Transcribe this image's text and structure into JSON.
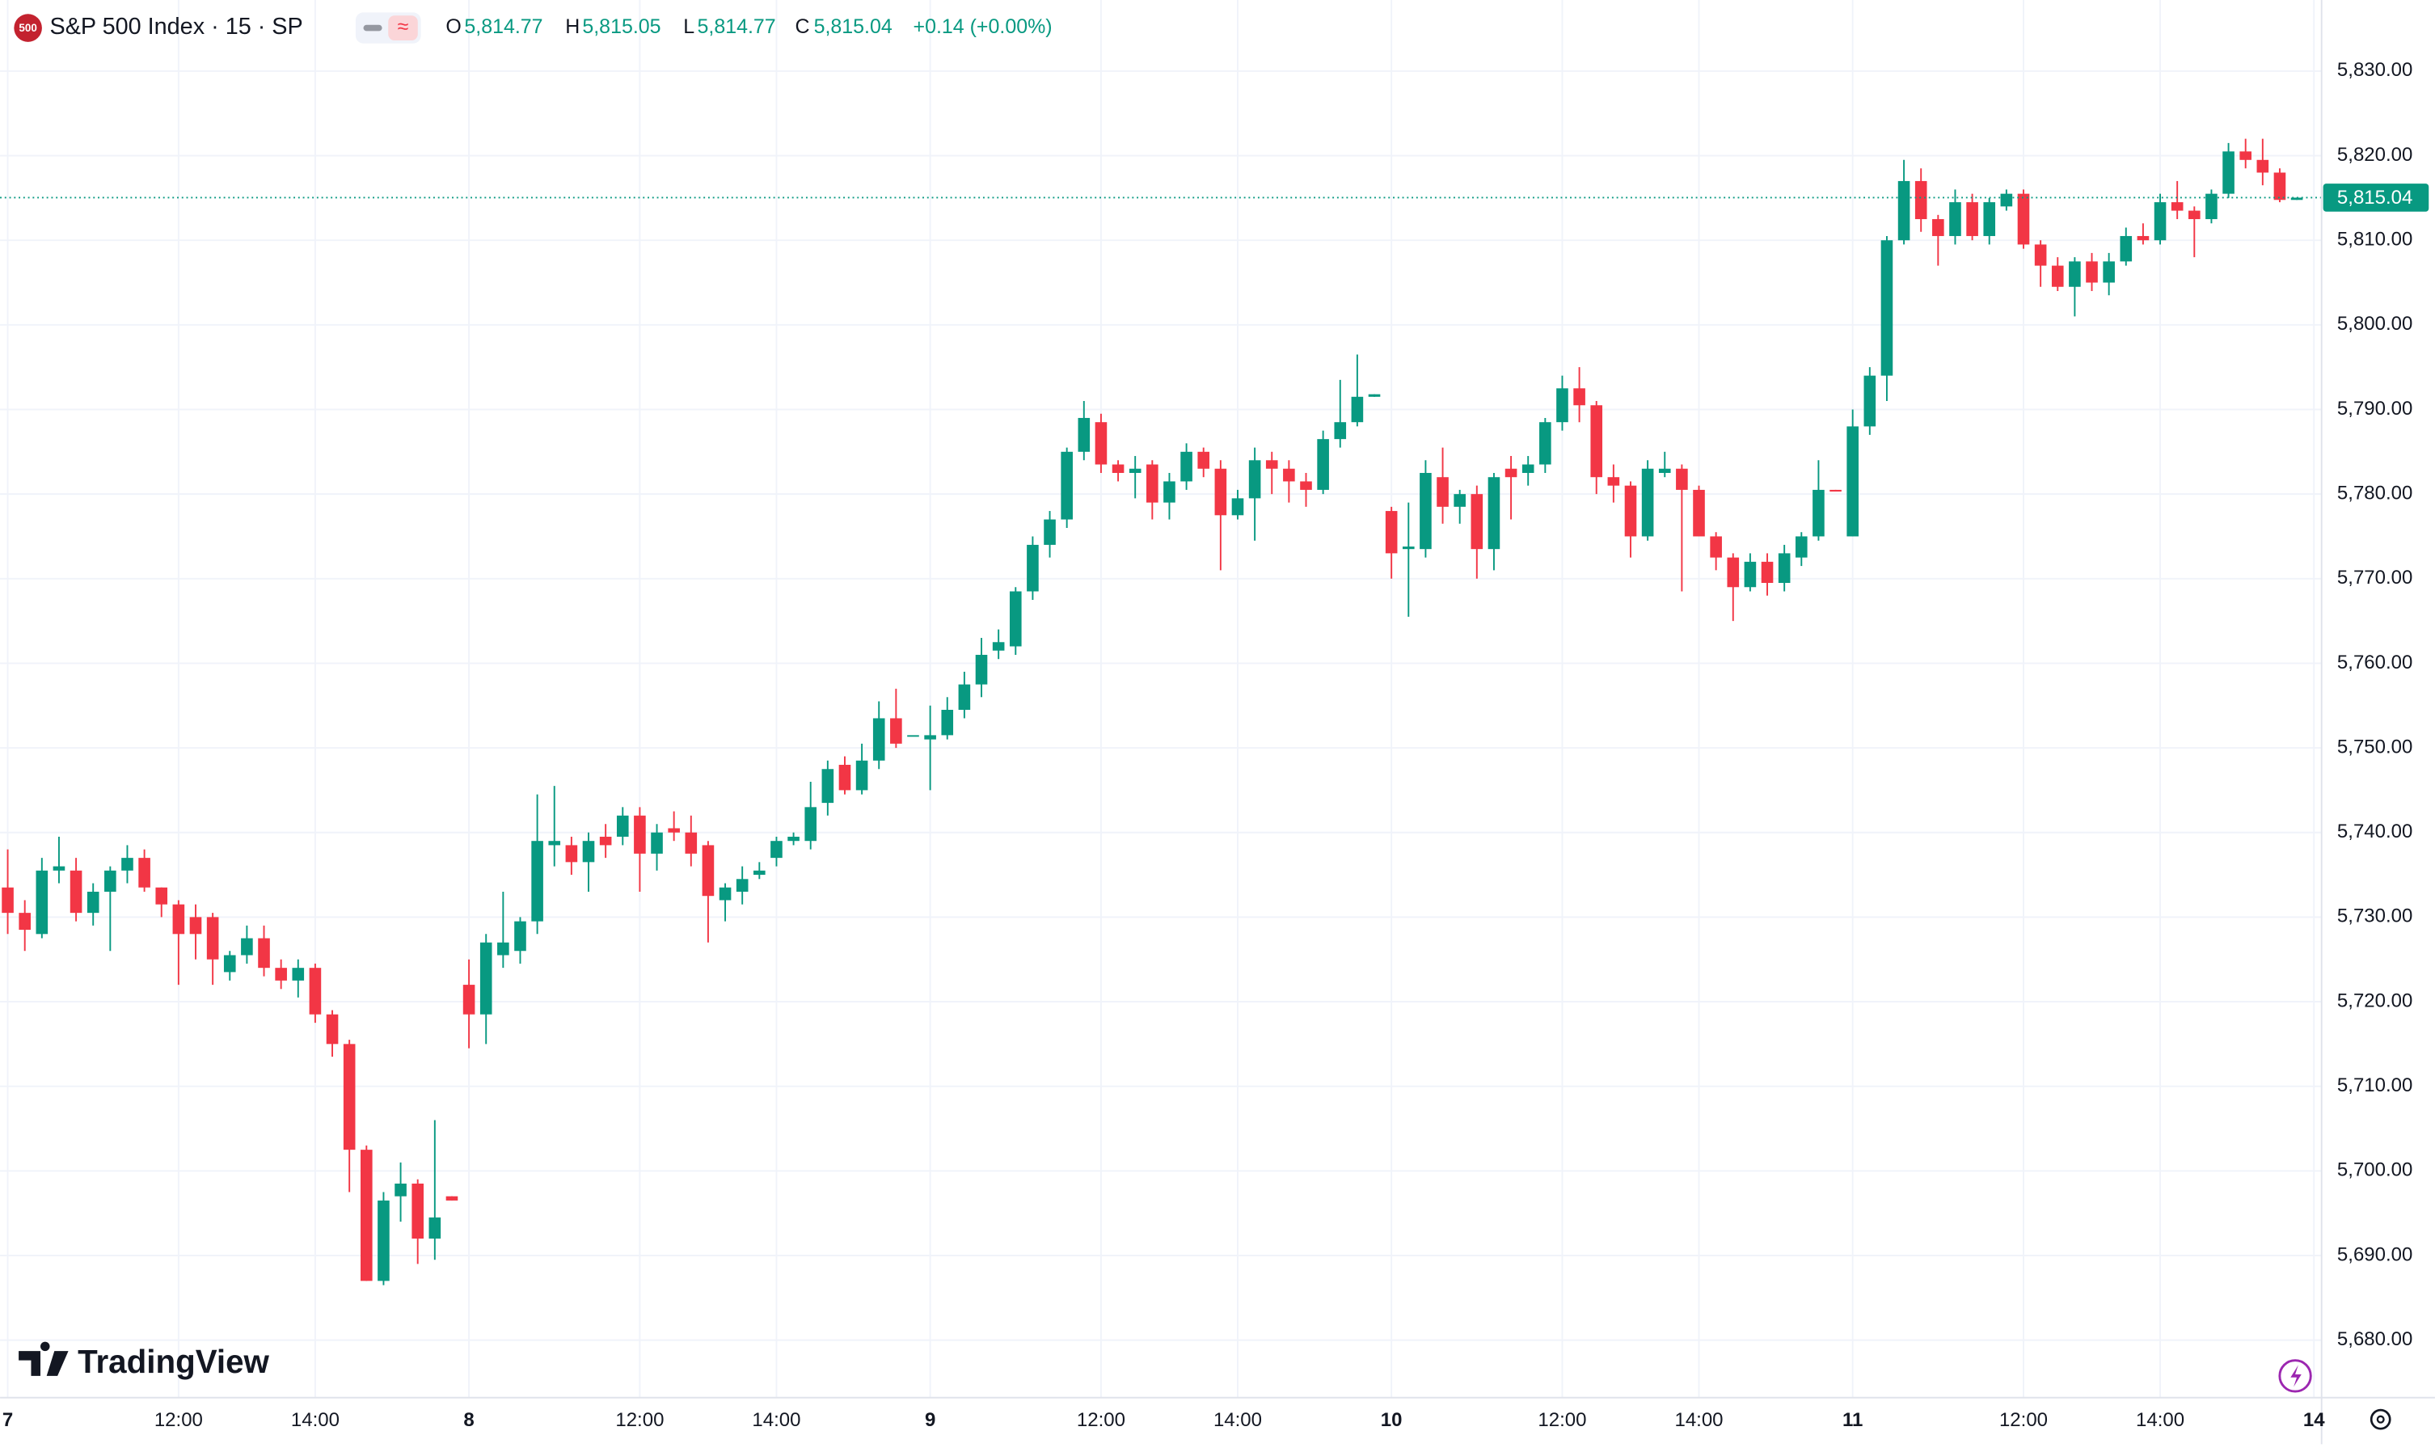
{
  "chart_data": {
    "type": "candlestick",
    "title": "S&P 500 Index · 15 · SP",
    "logo": "500",
    "watermark": "TradingView",
    "legend": {
      "open": {
        "label": "O",
        "value": "5,814.77"
      },
      "high": {
        "label": "H",
        "value": "5,815.05"
      },
      "low": {
        "label": "L",
        "value": "5,814.77"
      },
      "close": {
        "label": "C",
        "value": "5,815.04"
      },
      "change": "+0.14 (+0.00%)"
    },
    "up_color": "#089981",
    "down_color": "#f23645",
    "grid": true,
    "xlim": [
      -0.45,
      135.45
    ],
    "ylim": [
      5673.2,
      5838.4
    ],
    "xticks": [
      {
        "value": 0,
        "label": "7"
      },
      {
        "value": 10,
        "label": "12:00"
      },
      {
        "value": 18,
        "label": "14:00"
      },
      {
        "value": 27,
        "label": "8"
      },
      {
        "value": 37,
        "label": "12:00"
      },
      {
        "value": 45,
        "label": "14:00"
      },
      {
        "value": 54,
        "label": "9"
      },
      {
        "value": 64,
        "label": "12:00"
      },
      {
        "value": 72,
        "label": "14:00"
      },
      {
        "value": 81,
        "label": "10"
      },
      {
        "value": 91,
        "label": "12:00"
      },
      {
        "value": 99,
        "label": "14:00"
      },
      {
        "value": 108,
        "label": "11"
      },
      {
        "value": 118,
        "label": "12:00"
      },
      {
        "value": 126,
        "label": "14:00"
      },
      {
        "value": 135,
        "label": "14"
      }
    ],
    "yticks": [
      {
        "value": 5680,
        "label": "5,680.00"
      },
      {
        "value": 5690,
        "label": "5,690.00"
      },
      {
        "value": 5700,
        "label": "5,700.00"
      },
      {
        "value": 5710,
        "label": "5,710.00"
      },
      {
        "value": 5720,
        "label": "5,720.00"
      },
      {
        "value": 5730,
        "label": "5,730.00"
      },
      {
        "value": 5740,
        "label": "5,740.00"
      },
      {
        "value": 5750,
        "label": "5,750.00"
      },
      {
        "value": 5760,
        "label": "5,760.00"
      },
      {
        "value": 5770,
        "label": "5,770.00"
      },
      {
        "value": 5780,
        "label": "5,780.00"
      },
      {
        "value": 5790,
        "label": "5,790.00"
      },
      {
        "value": 5800,
        "label": "5,800.00"
      },
      {
        "value": 5810,
        "label": "5,810.00"
      },
      {
        "value": 5820,
        "label": "5,820.00"
      },
      {
        "value": 5830,
        "label": "5,830.00"
      }
    ],
    "last_price": {
      "value": 5815.04,
      "label": "5,815.04"
    },
    "open": [
      5733.5,
      5730.5,
      5728,
      5735.5,
      5735.5,
      5730.5,
      5733,
      5735.5,
      5737,
      5733.5,
      5731.5,
      5730,
      5730,
      5723.5,
      5725.5,
      5727.5,
      5724,
      5722.5,
      5724,
      5718.5,
      5715,
      5702.5,
      5687,
      5697,
      5698.5,
      5692,
      5697,
      5722,
      5718.5,
      5725.5,
      5726,
      5729.5,
      5738.5,
      5738.5,
      5736.5,
      5739.5,
      5739.5,
      5742,
      5737.5,
      5740.5,
      5740,
      5738.5,
      5732,
      5733,
      5735,
      5737,
      5739,
      5739,
      5743.5,
      5748,
      5745,
      5748.5,
      5753.5,
      5751.5,
      5751,
      5751.5,
      5754.5,
      5757.5,
      5761.5,
      5762,
      5768.5,
      5774,
      5777,
      5785,
      5788.5,
      5783.5,
      5782.5,
      5783.5,
      5779,
      5781.5,
      5785,
      5783,
      5777.5,
      5779.5,
      5784,
      5783,
      5781.5,
      5780.5,
      5786.5,
      5788.5,
      5791.5,
      5778,
      5773.5,
      5773.5,
      5782,
      5778.5,
      5780,
      5773.5,
      5783,
      5782.5,
      5783.5,
      5788.5,
      5792.5,
      5790.5,
      5782,
      5781,
      5775,
      5782.5,
      5783,
      5780.5,
      5775,
      5772.5,
      5769,
      5772,
      5769.5,
      5772.5,
      5775,
      5780.5,
      5775,
      5788,
      5794,
      5810,
      5817,
      5812.5,
      5810.5,
      5814.5,
      5810.5,
      5814,
      5815.5,
      5809.5,
      5807,
      5804.5,
      5807.5,
      5805,
      5807.5,
      5810.5,
      5810,
      5814.5,
      5813.5,
      5812.5,
      5815.5,
      5820.5,
      5819.5,
      5818,
      5814.77
    ],
    "high": [
      5738,
      5732,
      5737,
      5739.5,
      5737,
      5734,
      5736,
      5738.5,
      5738,
      5733.5,
      5732,
      5731.5,
      5730.5,
      5726,
      5729,
      5729,
      5725,
      5725,
      5724.5,
      5719,
      5715.5,
      5703,
      5697.5,
      5701,
      5699,
      5706,
      5697,
      5725,
      5728,
      5733,
      5730,
      5744.5,
      5745.5,
      5739.5,
      5740,
      5741,
      5743,
      5743,
      5741,
      5742.5,
      5742,
      5739,
      5734,
      5736,
      5736.5,
      5739.5,
      5740,
      5746,
      5748.5,
      5749,
      5750.5,
      5755.5,
      5757,
      5751.5,
      5755,
      5756,
      5759,
      5763,
      5764,
      5769,
      5775,
      5778,
      5785.5,
      5791,
      5789.5,
      5784,
      5784.5,
      5784,
      5782.5,
      5786,
      5785.5,
      5784,
      5780.5,
      5785.5,
      5785,
      5784,
      5782.5,
      5787.5,
      5793.5,
      5796.5,
      5791.8,
      5778.5,
      5779,
      5784,
      5785.5,
      5780.5,
      5781,
      5782.5,
      5784.5,
      5784.5,
      5789,
      5794,
      5795,
      5791,
      5783.5,
      5781.5,
      5784,
      5785,
      5783.5,
      5781,
      5775.5,
      5773,
      5773,
      5773,
      5774,
      5775.5,
      5784,
      5780.5,
      5790,
      5795,
      5810.5,
      5819.5,
      5818.5,
      5813,
      5816,
      5815.5,
      5815,
      5816,
      5816,
      5810,
      5808,
      5808,
      5808.5,
      5808.5,
      5811.5,
      5812,
      5815.5,
      5817,
      5814,
      5816,
      5821.5,
      5822,
      5822,
      5818.5,
      5815.05
    ],
    "low": [
      5728,
      5726,
      5727.5,
      5734,
      5729.5,
      5729,
      5726,
      5734,
      5733,
      5730,
      5722,
      5725,
      5722,
      5722.5,
      5724.5,
      5723,
      5721.5,
      5720.5,
      5717.5,
      5713.5,
      5697.5,
      5687,
      5686.5,
      5694,
      5689,
      5689.5,
      5696.5,
      5714.5,
      5715,
      5724,
      5724.5,
      5728,
      5736,
      5735,
      5733,
      5737,
      5738.5,
      5733,
      5735.5,
      5739,
      5736,
      5727,
      5729.5,
      5731.5,
      5734.5,
      5736,
      5738.5,
      5738,
      5742,
      5744.5,
      5744.5,
      5747.5,
      5750,
      5751.5,
      5745,
      5751,
      5753.5,
      5756,
      5760.5,
      5761,
      5767.5,
      5772.5,
      5776,
      5784,
      5782.5,
      5781.5,
      5779.5,
      5777,
      5777,
      5780.5,
      5782,
      5771,
      5777,
      5774.5,
      5780,
      5779,
      5778.5,
      5780,
      5785.5,
      5788,
      5791.5,
      5770,
      5765.5,
      5772.5,
      5776.5,
      5776.5,
      5770,
      5771,
      5777,
      5781,
      5782.5,
      5787.5,
      5788.5,
      5780,
      5779,
      5772.5,
      5774.5,
      5782,
      5768.5,
      5775,
      5771,
      5765,
      5768.5,
      5768,
      5768.5,
      5771.5,
      5774.5,
      5780.3,
      5775,
      5787,
      5791,
      5809.5,
      5811,
      5807,
      5809.5,
      5810,
      5809.5,
      5813.5,
      5809,
      5804.5,
      5804,
      5801,
      5804,
      5803.5,
      5807,
      5809.5,
      5809.5,
      5812.5,
      5808,
      5812,
      5815,
      5818.5,
      5816.5,
      5814.5,
      5814.77
    ],
    "close": [
      5730.5,
      5728.5,
      5735.5,
      5736,
      5730.5,
      5733,
      5735.5,
      5737,
      5733.5,
      5731.5,
      5728,
      5728,
      5725,
      5725.5,
      5727.5,
      5724,
      5722.5,
      5724,
      5718.5,
      5715,
      5702.5,
      5687,
      5696.5,
      5698.5,
      5692,
      5694.5,
      5696.5,
      5718.5,
      5727,
      5727,
      5729.5,
      5739,
      5739,
      5736.5,
      5739,
      5738.5,
      5742,
      5737.5,
      5740,
      5740,
      5737.5,
      5732.5,
      5733.5,
      5734.5,
      5735.5,
      5739,
      5739.5,
      5743,
      5747.5,
      5745,
      5748.5,
      5753.5,
      5750.5,
      5751.5,
      5751.5,
      5754.5,
      5757.5,
      5761,
      5762.5,
      5768.5,
      5774,
      5777,
      5785,
      5789,
      5783.5,
      5782.5,
      5783,
      5779,
      5781.5,
      5785,
      5783,
      5777.5,
      5779.5,
      5784,
      5783,
      5781.5,
      5780.5,
      5786.5,
      5788.5,
      5791.5,
      5791.8,
      5773,
      5773.8,
      5782.5,
      5778.5,
      5780,
      5773.5,
      5782,
      5782,
      5783.5,
      5788.5,
      5792.5,
      5790.5,
      5782,
      5781,
      5775,
      5783,
      5783,
      5780.5,
      5775,
      5772.5,
      5769,
      5772,
      5769.5,
      5773,
      5775,
      5780.5,
      5780.3,
      5788,
      5794,
      5810,
      5817,
      5812.5,
      5810.5,
      5814.5,
      5810.5,
      5814.5,
      5815.5,
      5809.5,
      5807,
      5804.5,
      5807.5,
      5805,
      5807.5,
      5810.5,
      5810,
      5814.5,
      5813.5,
      5812.5,
      5815.5,
      5820.5,
      5819.5,
      5818,
      5814.77,
      5815.04
    ]
  }
}
